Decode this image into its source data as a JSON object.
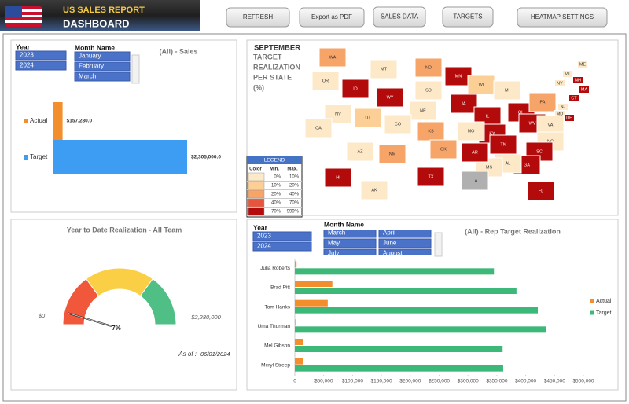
{
  "header": {
    "title": "US SALES REPORT",
    "subtitle": "DASHBOARD"
  },
  "buttons": [
    "REFRESH",
    "Export as PDF",
    "SALES DATA",
    "TARGETS",
    "HEATMAP SETTINGS"
  ],
  "sales_slicers": {
    "year": {
      "title": "Year",
      "items": [
        "2023",
        "2024"
      ]
    },
    "month": {
      "title": "Month Name",
      "items": [
        "January",
        "February",
        "March"
      ]
    }
  },
  "rep_slicers": {
    "year": {
      "title": "Year",
      "items": [
        "2023",
        "2024"
      ]
    },
    "month": {
      "title": "Month Name",
      "items": [
        "March",
        "April",
        "May",
        "June",
        "July",
        "August"
      ]
    }
  },
  "map": {
    "month": "SEPTEMBER",
    "title_lines": [
      "TARGET",
      "REALIZATION",
      "PER STATE",
      "(%)"
    ],
    "legend": {
      "title": "LEGEND",
      "columns": [
        "Color",
        "Min.",
        "Max."
      ],
      "rows": [
        {
          "color": "#fde9c8",
          "min": "0%",
          "max": "10%"
        },
        {
          "color": "#fccf96",
          "min": "10%",
          "max": "20%"
        },
        {
          "color": "#f7a468",
          "min": "20%",
          "max": "40%"
        },
        {
          "color": "#e8553a",
          "min": "40%",
          "max": "70%"
        },
        {
          "color": "#b30b0b",
          "min": "70%",
          "max": "999%"
        }
      ]
    },
    "no_data_color": "#b0b0b0",
    "states": [
      {
        "label": "WA",
        "level": 2
      },
      {
        "label": "OR",
        "level": 0
      },
      {
        "label": "ID",
        "level": 4
      },
      {
        "label": "MT",
        "level": 0
      },
      {
        "label": "WY",
        "level": 4
      },
      {
        "label": "ND",
        "level": 2
      },
      {
        "label": "SD",
        "level": 0
      },
      {
        "label": "MN",
        "level": 4
      },
      {
        "label": "WI",
        "level": 1
      },
      {
        "label": "MI",
        "level": 0
      },
      {
        "label": "IA",
        "level": 4
      },
      {
        "label": "IL",
        "level": 4
      },
      {
        "label": "KY",
        "level": 4
      },
      {
        "label": "OH",
        "level": 4
      },
      {
        "label": "WV",
        "level": 4
      },
      {
        "label": "PA",
        "level": 2
      },
      {
        "label": "NY",
        "level": 0
      },
      {
        "label": "VT",
        "level": 0
      },
      {
        "label": "NH",
        "level": 4
      },
      {
        "label": "ME",
        "level": 0
      },
      {
        "label": "MA",
        "level": 4
      },
      {
        "label": "CT",
        "level": 4
      },
      {
        "label": "NJ",
        "level": 0
      },
      {
        "label": "DE",
        "level": 4
      },
      {
        "label": "MD",
        "level": 0
      },
      {
        "label": "VA",
        "level": 0
      },
      {
        "label": "NC",
        "level": 0
      },
      {
        "label": "TN",
        "level": 4
      },
      {
        "label": "SC",
        "level": 4
      },
      {
        "label": "GA",
        "level": 4
      },
      {
        "label": "FL",
        "level": 4
      },
      {
        "label": "AL",
        "level": 0
      },
      {
        "label": "MS",
        "level": 0
      },
      {
        "label": "AR",
        "level": 4
      },
      {
        "label": "LA",
        "level": null
      },
      {
        "label": "MO",
        "level": 0
      },
      {
        "label": "KS",
        "level": 2
      },
      {
        "label": "NE",
        "level": 0
      },
      {
        "label": "OK",
        "level": 2
      },
      {
        "label": "TX",
        "level": 4
      },
      {
        "label": "NM",
        "level": 2
      },
      {
        "label": "CO",
        "level": 0
      },
      {
        "label": "UT",
        "level": 1
      },
      {
        "label": "AZ",
        "level": 0
      },
      {
        "label": "NV",
        "level": 0
      },
      {
        "label": "CA",
        "level": 0
      },
      {
        "label": "AK",
        "level": 0
      },
      {
        "label": "HI",
        "level": 4
      }
    ]
  },
  "chart_data": [
    {
      "type": "bar",
      "orientation": "horizontal",
      "title": "(All) - Sales",
      "series": [
        {
          "name": "Actual",
          "color": "#f28e2b",
          "values": [
            157280
          ],
          "value_labels": [
            "$157,280.0"
          ]
        },
        {
          "name": "Target",
          "color": "#3d9df3",
          "values": [
            2305000
          ],
          "value_labels": [
            "$2,305,000.0"
          ]
        }
      ]
    },
    {
      "type": "gauge",
      "title": "Year to Date Realization - All Team",
      "value": 7,
      "value_label": "7%",
      "ylim": [
        0,
        100
      ],
      "min_label": "$0",
      "max_label": "$2,280,000",
      "bands": [
        {
          "to": 30,
          "color": "#f0573b"
        },
        {
          "to": 70,
          "color": "#fbcf45"
        },
        {
          "to": 100,
          "color": "#4fbf86"
        }
      ],
      "note_label": "As of :",
      "note_value": "06/01/2024"
    },
    {
      "type": "bar",
      "orientation": "horizontal",
      "title": "(All) - Rep Target Realization",
      "categories": [
        "Julia Roberts",
        "Brad Pitt",
        "Tom Hanks",
        "Uma Thurman",
        "Mel Gibson",
        "Meryl Streep"
      ],
      "series": [
        {
          "name": "Actual",
          "color": "#f28e2b",
          "values": [
            3000,
            65000,
            57000,
            1000,
            15000,
            14000
          ]
        },
        {
          "name": "Target",
          "color": "#3cb878",
          "values": [
            345000,
            384000,
            421000,
            435000,
            360000,
            361000
          ]
        }
      ],
      "xlim": [
        0,
        500000
      ],
      "xticks": [
        0,
        {
          "value": 50000,
          "label": "$50,000"
        },
        {
          "value": 100000,
          "label": "$100,000"
        },
        {
          "value": 150000,
          "label": "$150,000"
        },
        {
          "value": 200000,
          "label": "$200,000"
        },
        {
          "value": 250000,
          "label": "$250,000"
        },
        {
          "value": 300000,
          "label": "$300,000"
        },
        {
          "value": 350000,
          "label": "$350,000"
        },
        {
          "value": 400000,
          "label": "$400,000"
        },
        {
          "value": 450000,
          "label": "$450,000"
        },
        {
          "value": 500000,
          "label": "$500,000"
        }
      ],
      "legend": "right"
    }
  ]
}
